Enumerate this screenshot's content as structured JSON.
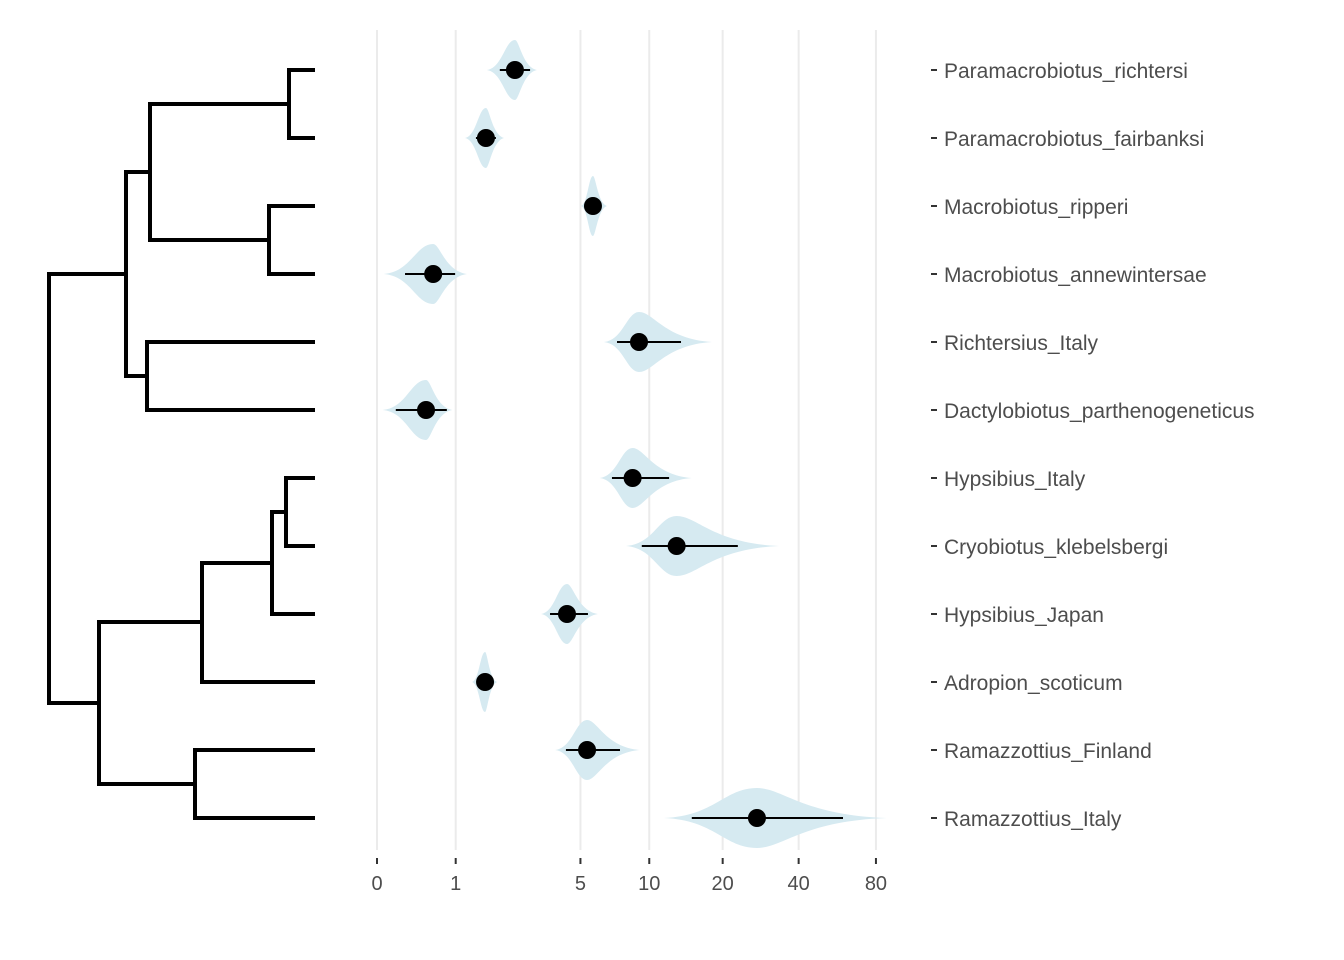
{
  "chart_data": {
    "type": "violin-with-phylogeny",
    "x_scale": "log2(x+1)",
    "xlim": [
      0,
      88
    ],
    "x_ticks": [
      0,
      1,
      5,
      10,
      20,
      40,
      80
    ],
    "x_tick_labels": [
      "0",
      "1",
      "5",
      "10",
      "20",
      "40",
      "80"
    ],
    "grid": "vertical",
    "violin_color": "#d6eaf1",
    "point_color": "#000000",
    "taxa": [
      {
        "name": "Paramacrobiotus_richtersi",
        "point": 2.37,
        "interval": [
          1.95,
          2.85
        ],
        "range": [
          1.63,
          3.09
        ]
      },
      {
        "name": "Paramacrobiotus_fairbanksi",
        "point": 1.61,
        "interval": [
          1.39,
          1.85
        ],
        "range": [
          1.17,
          2.06
        ]
      },
      {
        "name": "Macrobiotus_ripperi",
        "point": 5.7,
        "interval": null,
        "range": [
          5.03,
          6.58
        ]
      },
      {
        "name": "Macrobiotus_annewintersae",
        "point": 0.64,
        "interval": [
          0.28,
          0.99
        ],
        "range": [
          0.06,
          1.21
        ]
      },
      {
        "name": "Richtersius_Italy",
        "point": 9.05,
        "interval": [
          7.28,
          13.55
        ],
        "range": [
          6.38,
          18.1
        ]
      },
      {
        "name": "Dactylobiotus_parthenogeneticus",
        "point": 0.54,
        "interval": [
          0.18,
          0.85
        ],
        "range": [
          0.05,
          0.94
        ]
      },
      {
        "name": "Hypsibius_Italy",
        "point": 8.5,
        "interval": [
          6.92,
          12.1
        ],
        "range": [
          6.1,
          15
        ]
      },
      {
        "name": "Cryobiotus_klebelsbergi",
        "point": 13,
        "interval": [
          9.3,
          23
        ],
        "range": [
          7.96,
          33.5
        ]
      },
      {
        "name": "Hypsibius_Japan",
        "point": 4.33,
        "interval": [
          3.59,
          5.41
        ],
        "range": [
          3.24,
          6.0
        ]
      },
      {
        "name": "Adropion_scoticum",
        "point": 1.59,
        "interval": null,
        "range": [
          1.31,
          1.88
        ]
      },
      {
        "name": "Ramazzottius_Finland",
        "point": 5.36,
        "interval": [
          4.28,
          7.5
        ],
        "range": [
          3.8,
          9.1
        ]
      },
      {
        "name": "Ramazzottius_Italy",
        "point": 27.4,
        "interval": [
          15,
          59.6
        ],
        "range": [
          11.5,
          88
        ]
      }
    ]
  }
}
